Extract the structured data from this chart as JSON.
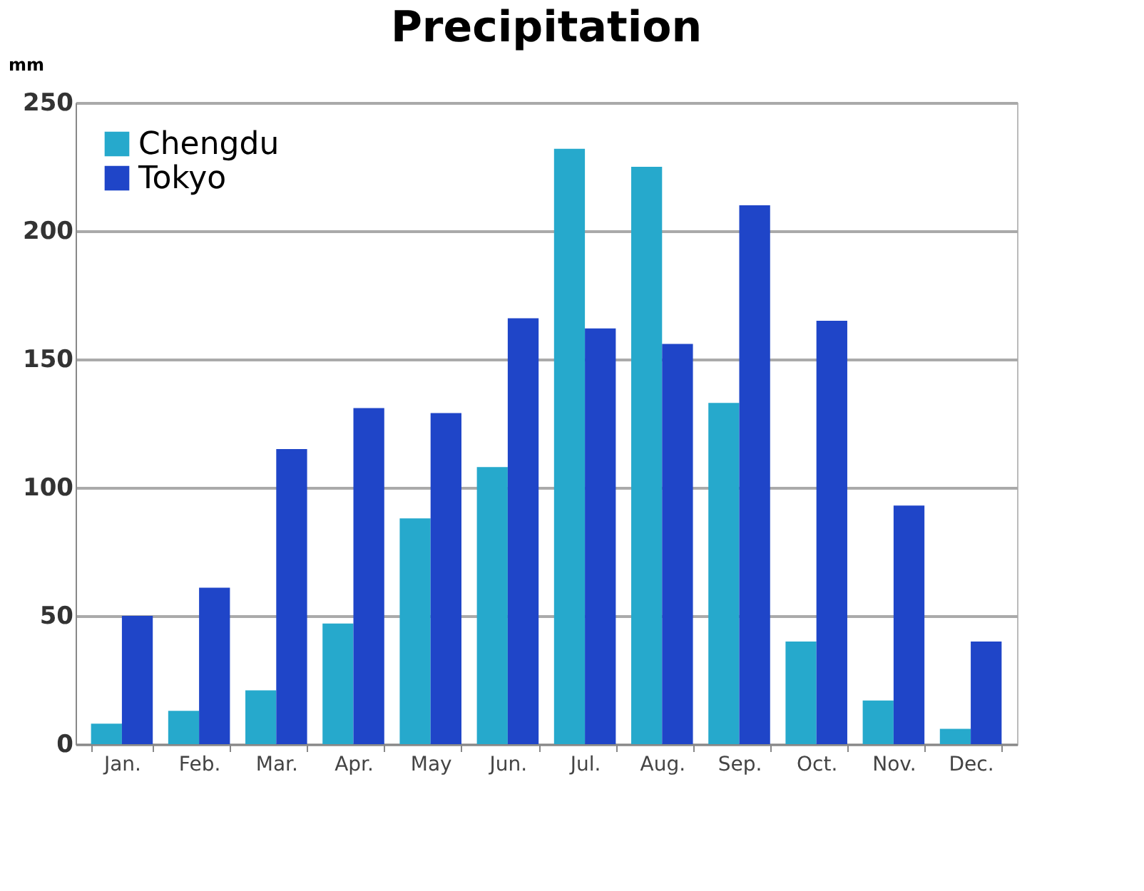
{
  "chart_data": {
    "type": "bar",
    "title": "Precipitation",
    "ylabel": "mm",
    "categories": [
      "Jan.",
      "Feb.",
      "Mar.",
      "Apr.",
      "May",
      "Jun.",
      "Jul.",
      "Aug.",
      "Sep.",
      "Oct.",
      "Nov.",
      "Dec."
    ],
    "series": [
      {
        "name": "Chengdu",
        "color": "#26a9cc",
        "values": [
          8,
          13,
          21,
          47,
          88,
          108,
          232,
          225,
          133,
          40,
          17,
          6
        ]
      },
      {
        "name": "Tokyo",
        "color": "#1f45c8",
        "values": [
          50,
          61,
          115,
          131,
          129,
          166,
          162,
          156,
          210,
          165,
          93,
          40
        ]
      }
    ],
    "ylim": [
      0,
      250
    ],
    "yticks": [
      0,
      50,
      100,
      150,
      200,
      250
    ],
    "grid": "y",
    "legend": "top left"
  }
}
